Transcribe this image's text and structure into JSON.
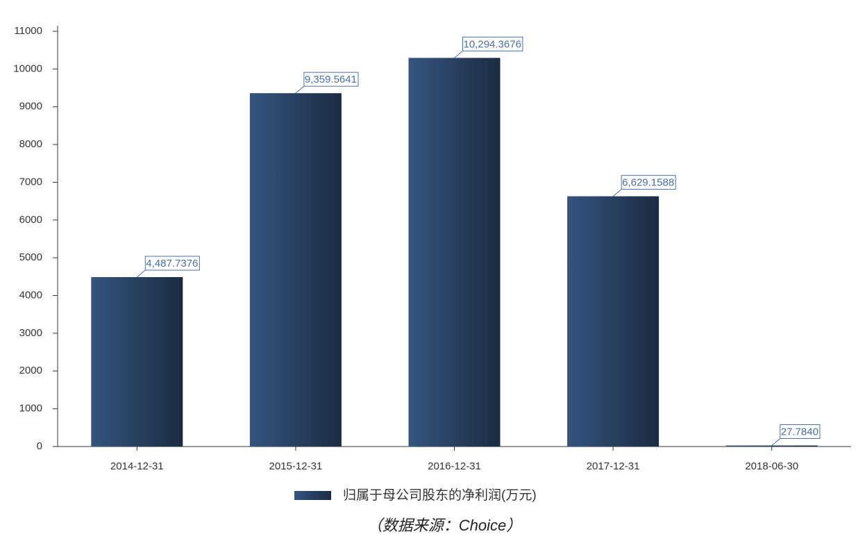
{
  "chart_data": {
    "type": "bar",
    "categories": [
      "2014-12-31",
      "2015-12-31",
      "2016-12-31",
      "2017-12-31",
      "2018-06-30"
    ],
    "series": [
      {
        "name": "归属于母公司股东的净利润(万元)",
        "color": "#34557f",
        "values": [
          4487.7376,
          9359.5641,
          10294.3676,
          6629.1588,
          27.784
        ],
        "value_labels": [
          "4,487.7376",
          "9,359.5641",
          "10,294.3676",
          "6,629.1588",
          "27.7840"
        ]
      }
    ],
    "ylim": [
      0,
      11000
    ],
    "yticks": [
      0,
      1000,
      2000,
      3000,
      4000,
      5000,
      6000,
      7000,
      8000,
      9000,
      10000,
      11000
    ],
    "grid": false,
    "legend": "bottom",
    "source": "（数据来源：Choice）"
  }
}
